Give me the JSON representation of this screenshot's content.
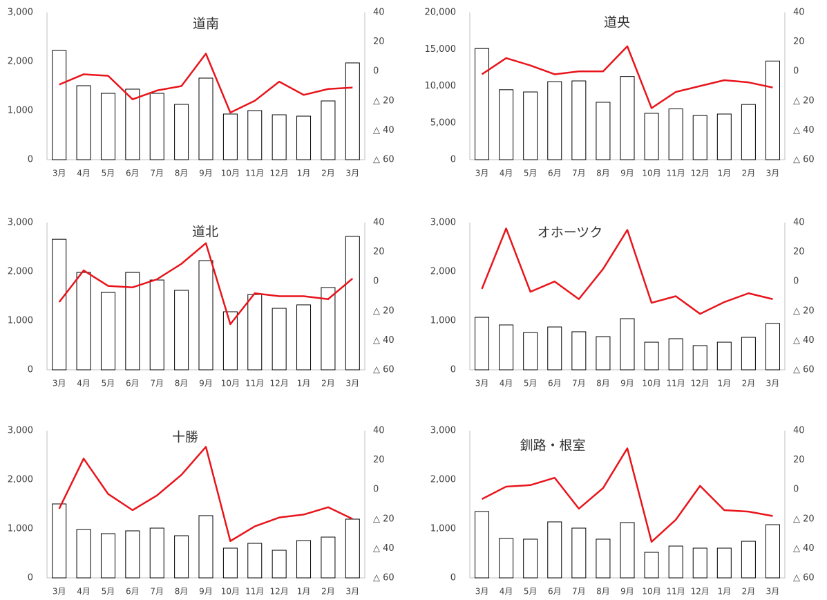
{
  "chart_data": [
    {
      "type": "bar-line",
      "title": "道南",
      "categories": [
        "3月",
        "4月",
        "5月",
        "6月",
        "7月",
        "8月",
        "9月",
        "10月",
        "11月",
        "12月",
        "1月",
        "2月",
        "3月"
      ],
      "series": [
        {
          "color": "#ffffff",
          "values": [
            2225,
            1507,
            1352,
            1437,
            1352,
            1127,
            1662,
            930,
            1000,
            915,
            887,
            1197,
            1972
          ]
        },
        {
          "color": "#e8141b",
          "axis": "y2",
          "values": [
            -9,
            -2,
            -3,
            -19,
            -13,
            -10,
            12,
            -28,
            -20,
            -7,
            -16,
            -12,
            -11
          ]
        }
      ],
      "ylim": [
        0,
        3000
      ],
      "yticks": [
        0,
        {
          "value": 1000,
          "label": "1,000"
        },
        {
          "value": 2000,
          "label": "2,000"
        },
        {
          "value": 3000,
          "label": "3,000"
        }
      ],
      "y2lim": [
        -60,
        40
      ],
      "y2ticks": [
        40,
        20,
        0,
        {
          "value": -20,
          "label": "△ 20"
        },
        {
          "value": -40,
          "label": "△ 40"
        },
        {
          "value": -60,
          "label": "△ 60"
        }
      ]
    },
    {
      "type": "bar-line",
      "title": "道央",
      "categories": [
        "3月",
        "4月",
        "5月",
        "6月",
        "7月",
        "8月",
        "9月",
        "10月",
        "11月",
        "12月",
        "1月",
        "2月",
        "3月"
      ],
      "series": [
        {
          "color": "#ffffff",
          "values": [
            15100,
            9500,
            9200,
            10600,
            10700,
            7800,
            11300,
            6300,
            6900,
            6000,
            6200,
            7500,
            13400
          ]
        },
        {
          "color": "#e8141b",
          "axis": "y2",
          "values": [
            -2,
            9,
            4,
            -2,
            0,
            0,
            17,
            -25,
            -14,
            -10,
            -6,
            -7.5,
            -11
          ]
        }
      ],
      "ylim": [
        0,
        20000
      ],
      "yticks": [
        0,
        {
          "value": 5000,
          "label": "5,000"
        },
        {
          "value": 10000,
          "label": "10,000"
        },
        {
          "value": 15000,
          "label": "15,000"
        },
        {
          "value": 20000,
          "label": "20,000"
        }
      ],
      "y2lim": [
        -60,
        40
      ],
      "y2ticks": [
        40,
        20,
        0,
        {
          "value": -20,
          "label": "△ 20"
        },
        {
          "value": -40,
          "label": "△ 40"
        },
        {
          "value": -60,
          "label": "△ 60"
        }
      ]
    },
    {
      "type": "bar-line",
      "title": "道北",
      "categories": [
        "3月",
        "4月",
        "5月",
        "6月",
        "7月",
        "8月",
        "9月",
        "10月",
        "11月",
        "12月",
        "1月",
        "2月",
        "3月"
      ],
      "series": [
        {
          "color": "#ffffff",
          "values": [
            2660,
            1985,
            1577,
            1985,
            1830,
            1620,
            2225,
            1183,
            1535,
            1253,
            1324,
            1676,
            2718
          ]
        },
        {
          "color": "#e8141b",
          "axis": "y2",
          "values": [
            -14,
            7.5,
            -3,
            -4,
            1.5,
            12,
            26,
            -29,
            -8,
            -10,
            -10,
            -12,
            2
          ]
        }
      ],
      "ylim": [
        0,
        3000
      ],
      "yticks": [
        0,
        {
          "value": 1000,
          "label": "1,000"
        },
        {
          "value": 2000,
          "label": "2,000"
        },
        {
          "value": 3000,
          "label": "3,000"
        }
      ],
      "y2lim": [
        -60,
        40
      ],
      "y2ticks": [
        40,
        20,
        0,
        {
          "value": -20,
          "label": "△ 20"
        },
        {
          "value": -40,
          "label": "△ 40"
        },
        {
          "value": -60,
          "label": "△ 60"
        }
      ]
    },
    {
      "type": "bar-line",
      "title": "オホーツク",
      "categories": [
        "3月",
        "4月",
        "5月",
        "6月",
        "7月",
        "8月",
        "9月",
        "10月",
        "11月",
        "12月",
        "1月",
        "2月",
        "3月"
      ],
      "series": [
        {
          "color": "#ffffff",
          "values": [
            1070,
            915,
            760,
            873,
            775,
            676,
            1042,
            563,
            634,
            493,
            563,
            662,
            944
          ]
        },
        {
          "color": "#e8141b",
          "axis": "y2",
          "values": [
            -5,
            36,
            -7,
            0,
            -12,
            8.5,
            35,
            -14.5,
            -10,
            -22,
            -14,
            -8,
            -12
          ]
        }
      ],
      "ylim": [
        0,
        3000
      ],
      "yticks": [
        0,
        {
          "value": 1000,
          "label": "1,000"
        },
        {
          "value": 2000,
          "label": "2,000"
        },
        {
          "value": 3000,
          "label": "3,000"
        }
      ],
      "y2lim": [
        -60,
        40
      ],
      "y2ticks": [
        40,
        20,
        0,
        {
          "value": -20,
          "label": "△ 20"
        },
        {
          "value": -40,
          "label": "△ 40"
        },
        {
          "value": -60,
          "label": "△ 60"
        }
      ]
    },
    {
      "type": "bar-line",
      "title": "十勝",
      "categories": [
        "3月",
        "4月",
        "5月",
        "6月",
        "7月",
        "8月",
        "9月",
        "10月",
        "11月",
        "12月",
        "1月",
        "2月",
        "3月"
      ],
      "series": [
        {
          "color": "#ffffff",
          "values": [
            1507,
            986,
            901,
            958,
            1014,
            859,
            1268,
            606,
            704,
            563,
            761,
            831,
            1197
          ]
        },
        {
          "color": "#e8141b",
          "axis": "y2",
          "values": [
            -13,
            21,
            -3,
            -14,
            -4,
            10,
            29,
            -35,
            -25,
            -19,
            -17,
            -12,
            -20
          ]
        }
      ],
      "ylim": [
        0,
        3000
      ],
      "yticks": [
        0,
        {
          "value": 1000,
          "label": "1,000"
        },
        {
          "value": 2000,
          "label": "2,000"
        },
        {
          "value": 3000,
          "label": "3,000"
        }
      ],
      "y2lim": [
        -60,
        40
      ],
      "y2ticks": [
        40,
        20,
        0,
        {
          "value": -20,
          "label": "△ 20"
        },
        {
          "value": -40,
          "label": "△ 40"
        },
        {
          "value": -60,
          "label": "△ 60"
        }
      ]
    },
    {
      "type": "bar-line",
      "title": "釧路・根室",
      "categories": [
        "3月",
        "4月",
        "5月",
        "6月",
        "7月",
        "8月",
        "9月",
        "10月",
        "11月",
        "12月",
        "1月",
        "2月",
        "3月"
      ],
      "series": [
        {
          "color": "#ffffff",
          "values": [
            1352,
            803,
            789,
            1141,
            1014,
            789,
            1127,
            521,
            648,
            606,
            606,
            746,
            1084
          ]
        },
        {
          "color": "#e8141b",
          "axis": "y2",
          "values": [
            -6.5,
            2,
            3,
            8,
            -13,
            1,
            28,
            -35.5,
            -20.5,
            2.5,
            -14,
            -15,
            -18
          ]
        }
      ],
      "ylim": [
        0,
        3000
      ],
      "yticks": [
        0,
        {
          "value": 1000,
          "label": "1,000"
        },
        {
          "value": 2000,
          "label": "2,000"
        },
        {
          "value": 3000,
          "label": "3,000"
        }
      ],
      "y2lim": [
        -60,
        40
      ],
      "y2ticks": [
        40,
        20,
        0,
        {
          "value": -20,
          "label": "△ 20"
        },
        {
          "value": -40,
          "label": "△ 40"
        },
        {
          "value": -60,
          "label": "△ 60"
        }
      ]
    }
  ]
}
